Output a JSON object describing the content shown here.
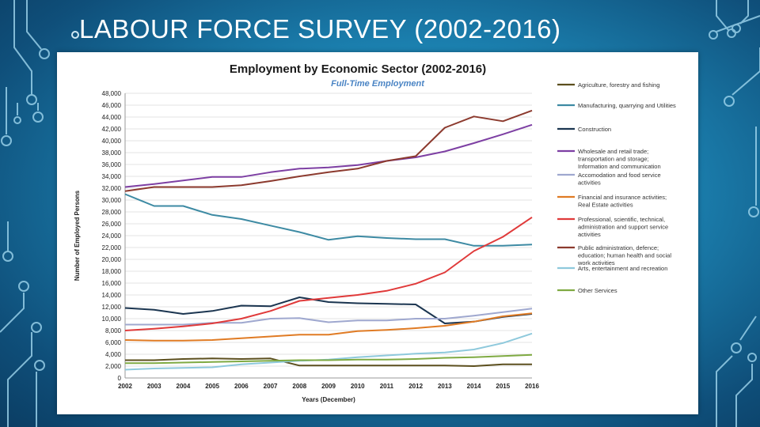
{
  "slide": {
    "title": "LABOUR FORCE SURVEY (2002-2016)"
  },
  "colors": {
    "background": "#1b7fae",
    "circuit": "#9fd6ee"
  },
  "chart_data": {
    "type": "line",
    "title": "Employment by Economic Sector (2002-2016)",
    "subtitle": "Full-Time Employment",
    "xlabel": "Years (December)",
    "ylabel": "Number of Employed Persons",
    "x": [
      2002,
      2003,
      2004,
      2005,
      2006,
      2007,
      2008,
      2009,
      2010,
      2011,
      2012,
      2013,
      2014,
      2015,
      2016
    ],
    "ylim": [
      0,
      48000
    ],
    "yticks": [
      0,
      2000,
      4000,
      6000,
      8000,
      10000,
      12000,
      14000,
      16000,
      18000,
      20000,
      22000,
      24000,
      26000,
      28000,
      30000,
      32000,
      34000,
      36000,
      38000,
      40000,
      42000,
      44000,
      46000,
      48000
    ],
    "ytick_labels": [
      "0",
      "2,000",
      "4,000",
      "6,000",
      "8,000",
      "10,000",
      "12,000",
      "14,000",
      "16,000",
      "18,000",
      "20,000",
      "22,000",
      "24,000",
      "26,000",
      "28,000",
      "30,000",
      "32,000",
      "34,000",
      "36,000",
      "38,000",
      "40,000",
      "42,000",
      "44,000",
      "46,000",
      "48,000"
    ],
    "grid": true,
    "legend_position": "right",
    "series": [
      {
        "name": "Agriculture, forestry and fishing",
        "color": "#5c4f1e",
        "values": [
          3000,
          3000,
          3200,
          3300,
          3200,
          3300,
          2100,
          2100,
          2100,
          2100,
          2100,
          2100,
          2000,
          2300,
          2300
        ]
      },
      {
        "name": "Manufacturing, quarrying and Utilities",
        "color": "#3d8aa3",
        "values": [
          31000,
          29000,
          29000,
          27500,
          26800,
          25700,
          24600,
          23300,
          23900,
          23600,
          23400,
          23400,
          22300,
          22300,
          22500
        ]
      },
      {
        "name": "Construction",
        "color": "#1b3550",
        "values": [
          11800,
          11500,
          10800,
          11300,
          12200,
          12100,
          13600,
          12800,
          12600,
          12500,
          12400,
          9200,
          9500,
          10300,
          10800
        ]
      },
      {
        "name": "Wholesale and retail trade; transportation and storage; Information and communication",
        "color": "#7d3fa3",
        "values": [
          32200,
          32700,
          33300,
          33900,
          33900,
          34700,
          35300,
          35500,
          35900,
          36600,
          37200,
          38200,
          39600,
          41100,
          42700
        ]
      },
      {
        "name": "Accomodation and food service activities",
        "color": "#9fa8cf",
        "values": [
          9000,
          9000,
          9000,
          9300,
          9300,
          10000,
          10100,
          9400,
          9700,
          9700,
          10000,
          10000,
          10500,
          11100,
          11700
        ]
      },
      {
        "name": "Financial and insurance activities; Real Estate activities",
        "color": "#e07b24",
        "values": [
          6400,
          6300,
          6300,
          6400,
          6700,
          7000,
          7300,
          7300,
          7900,
          8100,
          8400,
          8800,
          9500,
          10400,
          10900
        ]
      },
      {
        "name": "Professional, scientific, technical, administration and support service activities",
        "color": "#e03a3a",
        "values": [
          8000,
          8300,
          8700,
          9200,
          10000,
          11300,
          13000,
          13500,
          14000,
          14700,
          15900,
          17800,
          21400,
          23800,
          27100
        ]
      },
      {
        "name": "Public administration, defence; education; human health and social work activities",
        "color": "#8c3a2e",
        "values": [
          31500,
          32200,
          32200,
          32200,
          32500,
          33200,
          34000,
          34700,
          35300,
          36600,
          37400,
          42200,
          44100,
          43300,
          45100
        ]
      },
      {
        "name": "Arts, entertainment and recreation",
        "color": "#8ec9dc",
        "values": [
          1400,
          1600,
          1700,
          1800,
          2300,
          2600,
          2900,
          3100,
          3500,
          3800,
          4100,
          4300,
          4800,
          5900,
          7500
        ]
      },
      {
        "name": "Other Services",
        "color": "#7faa42",
        "values": [
          2500,
          2500,
          2600,
          2700,
          2800,
          2900,
          3000,
          3000,
          3100,
          3100,
          3200,
          3400,
          3500,
          3700,
          3900
        ]
      }
    ]
  }
}
